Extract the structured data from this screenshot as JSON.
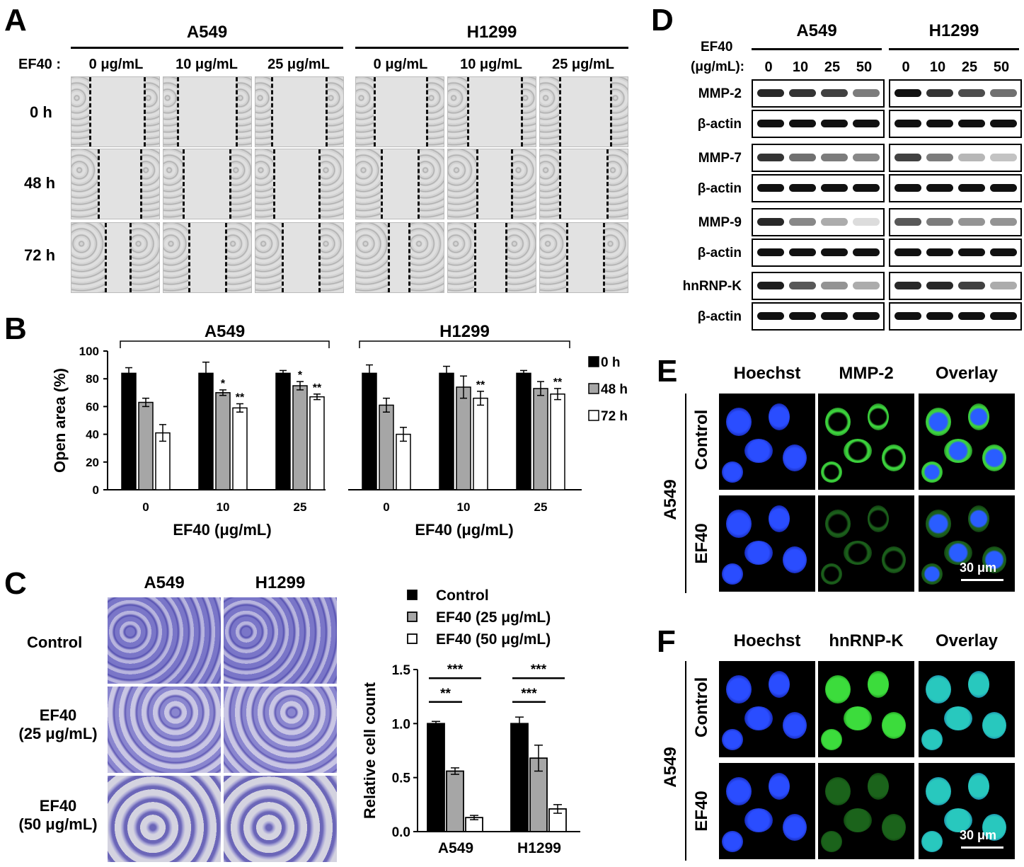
{
  "panels": {
    "A": "A",
    "B": "B",
    "C": "C",
    "D": "D",
    "E": "E",
    "F": "F"
  },
  "panelA": {
    "groups": [
      "A549",
      "H1299"
    ],
    "treatment_label": "EF40 :",
    "concentrations": [
      "0 μg/mL",
      "10 μg/mL",
      "25 μg/mL"
    ],
    "timepoints": [
      "0 h",
      "48 h",
      "72 h"
    ]
  },
  "panelD": {
    "ef40_label": "EF40",
    "unit_label": "(μg/mL):",
    "groups": [
      "A549",
      "H1299"
    ],
    "lanes": [
      "0",
      "10",
      "25",
      "50"
    ],
    "blots": [
      "MMP-2",
      "β-actin",
      "MMP-7",
      "β-actin",
      "MMP-9",
      "β-actin",
      "hnRNP-K",
      "β-actin"
    ],
    "intensity": {
      "MMP-2": {
        "A549": [
          0.9,
          0.85,
          0.8,
          0.55
        ],
        "H1299": [
          1.0,
          0.85,
          0.75,
          0.6
        ]
      },
      "MMP-7": {
        "A549": [
          0.85,
          0.6,
          0.55,
          0.5
        ],
        "H1299": [
          0.8,
          0.55,
          0.3,
          0.25
        ]
      },
      "MMP-9": {
        "A549": [
          0.9,
          0.5,
          0.35,
          0.15
        ],
        "H1299": [
          0.7,
          0.55,
          0.45,
          0.45
        ]
      },
      "hnRNP-K": {
        "A549": [
          0.95,
          0.7,
          0.45,
          0.35
        ],
        "H1299": [
          0.9,
          0.9,
          0.8,
          0.35
        ]
      },
      "beta-actin": [
        1,
        1,
        1,
        1
      ]
    }
  },
  "panelE": {
    "columns": [
      "Hoechst",
      "MMP-2",
      "Overlay"
    ],
    "cell_line": "A549",
    "rows": [
      "Control",
      "EF40"
    ],
    "scale_bar": "30 μm"
  },
  "panelF": {
    "columns": [
      "Hoechst",
      "hnRNP-K",
      "Overlay"
    ],
    "cell_line": "A549",
    "rows": [
      "Control",
      "EF40"
    ],
    "scale_bar": "30 μm"
  },
  "panelC": {
    "columns": [
      "A549",
      "H1299"
    ],
    "rows": [
      [
        "Control"
      ],
      [
        "EF40",
        "(25 μg/mL)"
      ],
      [
        "EF40",
        "(50 μg/mL)"
      ]
    ]
  },
  "colors": {
    "black": "#000000",
    "gray": "#a6a6a6",
    "white": "#ffffff",
    "hoechst": "#1a3cff",
    "green": "#2ecc2e"
  },
  "chart_data": [
    {
      "type": "bar",
      "group_titles": [
        "A549",
        "H1299"
      ],
      "groups": [
        "A549",
        "H1299"
      ],
      "categories": [
        "0",
        "10",
        "25"
      ],
      "xlabel": "EF40 (μg/mL)",
      "ylabel": "Open area (%)",
      "ylim": [
        0,
        100
      ],
      "yticks": [
        0,
        20,
        40,
        60,
        80,
        100
      ],
      "legend": [
        "0 h",
        "48 h",
        "72 h"
      ],
      "legend_position": "right",
      "series": [
        {
          "name": "0 h",
          "color": "#000000",
          "A549": [
            84,
            84,
            84
          ],
          "H1299": [
            84,
            84,
            84
          ],
          "err_A549": [
            4,
            8,
            2
          ],
          "err_H1299": [
            6,
            5,
            2
          ]
        },
        {
          "name": "48 h",
          "color": "#a6a6a6",
          "A549": [
            63,
            70,
            75
          ],
          "H1299": [
            61,
            74,
            73
          ],
          "err_A549": [
            3,
            2,
            3
          ],
          "err_H1299": [
            5,
            8,
            5
          ]
        },
        {
          "name": "72 h",
          "color": "#ffffff",
          "A549": [
            41,
            59,
            67
          ],
          "H1299": [
            40,
            66,
            69
          ],
          "err_A549": [
            6,
            3,
            2
          ],
          "err_H1299": [
            5,
            5,
            4
          ]
        }
      ],
      "significance": {
        "A549": [
          [
            "",
            "",
            ""
          ],
          [
            "",
            "*",
            "**"
          ],
          [
            "",
            "*",
            "**"
          ]
        ],
        "H1299": [
          [
            "",
            "",
            ""
          ],
          [
            "",
            "",
            "**"
          ],
          [
            "",
            "",
            "**"
          ]
        ]
      }
    },
    {
      "type": "bar",
      "categories": [
        "A549",
        "H1299"
      ],
      "ylabel": "Relative cell count",
      "ylim": [
        0,
        1.5
      ],
      "yticks": [
        "0.0",
        "0.5",
        "1.0",
        "1.5"
      ],
      "legend": [
        "Control",
        "EF40 (25 μg/mL)",
        "EF40 (50 μg/mL)"
      ],
      "legend_position": "top",
      "series": [
        {
          "name": "Control",
          "color": "#000000",
          "values": [
            1.0,
            1.0
          ],
          "err": [
            0.02,
            0.06
          ]
        },
        {
          "name": "EF40 (25 μg/mL)",
          "color": "#a6a6a6",
          "values": [
            0.56,
            0.68
          ],
          "err": [
            0.03,
            0.12
          ]
        },
        {
          "name": "EF40 (50 μg/mL)",
          "color": "#ffffff",
          "values": [
            0.13,
            0.21
          ],
          "err": [
            0.02,
            0.04
          ]
        }
      ],
      "brackets": [
        {
          "group": "A549",
          "from": 0,
          "to": 1,
          "label": "**"
        },
        {
          "group": "A549",
          "from": 0,
          "to": 2,
          "label": "***"
        },
        {
          "group": "H1299",
          "from": 0,
          "to": 1,
          "label": "***"
        },
        {
          "group": "H1299",
          "from": 0,
          "to": 2,
          "label": "***"
        }
      ]
    }
  ]
}
